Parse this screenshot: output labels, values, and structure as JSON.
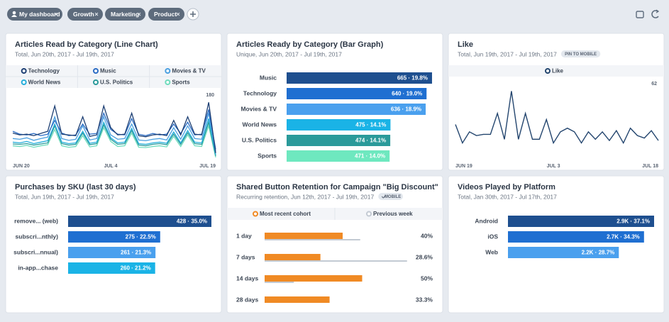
{
  "tabs": [
    "My dashboard",
    "Growth",
    "Marketing",
    "Product"
  ],
  "panels": [
    {
      "type": "line",
      "title": "Articles Read by Category (Line Chart)",
      "subtitle": "Total, Jun 20th, 2017 - Jul 19th, 2017",
      "ylim": [
        0,
        180
      ],
      "yticks": [
        180
      ],
      "xlim": [
        0,
        29
      ],
      "xticks": [
        {
          "value": 0,
          "label": "JUN 20"
        },
        {
          "value": 14,
          "label": "JUL 4"
        },
        {
          "value": 29,
          "label": "JUL 19"
        }
      ],
      "series": [
        {
          "name": "Technology",
          "color": "#1d3f73",
          "values": [
            75,
            70,
            72,
            68,
            74,
            80,
            150,
            72,
            70,
            68,
            120,
            66,
            70,
            150,
            90,
            70,
            72,
            130,
            68,
            65,
            70,
            72,
            68,
            110,
            70,
            120,
            72,
            70,
            160,
            20
          ]
        },
        {
          "name": "Music",
          "color": "#2b6cc4",
          "values": [
            80,
            72,
            70,
            74,
            68,
            72,
            110,
            75,
            68,
            70,
            100,
            72,
            74,
            130,
            85,
            72,
            70,
            115,
            72,
            68,
            74,
            70,
            72,
            100,
            74,
            105,
            70,
            72,
            140,
            30
          ]
        },
        {
          "name": "Movies & TV",
          "color": "#4a9fe0",
          "values": [
            60,
            58,
            62,
            55,
            60,
            64,
            120,
            60,
            55,
            58,
            95,
            56,
            60,
            120,
            70,
            58,
            60,
            100,
            56,
            54,
            58,
            60,
            56,
            90,
            58,
            95,
            60,
            58,
            130,
            25
          ]
        },
        {
          "name": "World News",
          "color": "#25aedb",
          "values": [
            50,
            48,
            52,
            46,
            50,
            54,
            100,
            50,
            46,
            48,
            80,
            47,
            50,
            105,
            62,
            48,
            50,
            88,
            46,
            44,
            48,
            50,
            47,
            78,
            48,
            82,
            50,
            48,
            115,
            15
          ]
        },
        {
          "name": "U.S. Politics",
          "color": "#2a9a9a",
          "values": [
            45,
            44,
            46,
            42,
            45,
            48,
            95,
            46,
            42,
            44,
            75,
            43,
            46,
            98,
            58,
            44,
            46,
            82,
            42,
            40,
            44,
            46,
            43,
            72,
            44,
            76,
            46,
            44,
            105,
            12
          ]
        },
        {
          "name": "Sports",
          "color": "#6fdcbd",
          "values": [
            40,
            38,
            41,
            36,
            40,
            43,
            85,
            40,
            36,
            38,
            68,
            37,
            40,
            90,
            52,
            38,
            40,
            75,
            36,
            35,
            38,
            40,
            37,
            66,
            38,
            70,
            40,
            38,
            95,
            8
          ]
        }
      ]
    },
    {
      "type": "hbar",
      "title": "Articles Ready by Category (Bar Graph)",
      "subtitle": "Unique, Jun 20th, 2017 - Jul 19th, 2017",
      "categories": [
        "Music",
        "Technology",
        "Movies & TV",
        "World News",
        "U.S. Politics",
        "Sports"
      ],
      "values": [
        665,
        640,
        636,
        475,
        474,
        471
      ],
      "value_labels": [
        "665 · 19.8%",
        "640 · 19.0%",
        "636 · 18.9%",
        "475 · 14.1%",
        "474 · 14.1%",
        "471 · 14.0%"
      ],
      "colors": [
        "#1e4f8f",
        "#1f6fd1",
        "#4aa0ee",
        "#1ab3e6",
        "#2a9a9a",
        "#6ee8bf"
      ],
      "xlim": [
        0,
        665
      ]
    },
    {
      "type": "line",
      "title": "Like",
      "subtitle": "Total, Jun 19th, 2017 - Jul 19th, 2017",
      "badge": "PIN TO MOBILE",
      "ylim": [
        0,
        62
      ],
      "yticks": [
        62
      ],
      "xlim": [
        0,
        29
      ],
      "xticks": [
        {
          "value": 0,
          "label": "JUN 19"
        },
        {
          "value": 14,
          "label": "JUL 3"
        },
        {
          "value": 29,
          "label": "JUL 18"
        }
      ],
      "legend": "center",
      "series": [
        {
          "name": "Like",
          "color": "#23456e",
          "values": [
            29,
            14,
            23,
            20,
            21,
            21,
            38,
            17,
            56,
            17,
            38,
            17,
            17,
            33,
            14,
            23,
            26,
            23,
            14,
            23,
            17,
            23,
            16,
            24,
            14,
            26,
            20,
            18,
            24,
            16
          ]
        }
      ]
    },
    {
      "type": "hbar",
      "title": "Purchases by SKU (last 30 days)",
      "subtitle": "Total, Jun 19th, 2017 - Jul 19th, 2017",
      "categories": [
        "remove... (web)",
        "subscri...nthly)",
        "subscri...nnual)",
        "in-app...chase"
      ],
      "values": [
        428,
        275,
        261,
        260
      ],
      "value_labels": [
        "428 · 35.0%",
        "275 · 22.5%",
        "261 · 21.3%",
        "260 · 21.2%"
      ],
      "colors": [
        "#1e4f8f",
        "#1f6fd1",
        "#4aa0ee",
        "#1ab3e6"
      ],
      "xlim": [
        0,
        428
      ]
    },
    {
      "type": "retention",
      "title": "Shared Button Retention for Campaign \"Big Discount\"",
      "subtitle": "Recurring retention, Jun 12th, 2017 - Jul 19th, 2017",
      "badge": "MOBILE",
      "categories": [
        "1 day",
        "7 days",
        "14 days",
        "28 days"
      ],
      "xlim": [
        0,
        100
      ],
      "series": [
        {
          "name": "Most recent cohort",
          "color": "#f08a24",
          "values": [
            40,
            28.6,
            50,
            33.3
          ],
          "value_labels": [
            "40%",
            "28.6%",
            "50%",
            "33.3%"
          ]
        },
        {
          "name": "Previous week",
          "color": "#c3cad3",
          "values": [
            49,
            73,
            15,
            null
          ]
        }
      ]
    },
    {
      "type": "hbar",
      "title": "Videos Played by Platform",
      "subtitle": "Total, Jan 30th, 2017 - Jul 17th, 2017",
      "categories": [
        "Android",
        "iOS",
        "Web"
      ],
      "values": [
        2900,
        2700,
        2200
      ],
      "value_labels": [
        "2.9K · 37.1%",
        "2.7K · 34.3%",
        "2.2K · 28.7%"
      ],
      "colors": [
        "#1e4f8f",
        "#1f6fd1",
        "#4aa0ee"
      ],
      "xlim": [
        0,
        2900
      ]
    }
  ]
}
